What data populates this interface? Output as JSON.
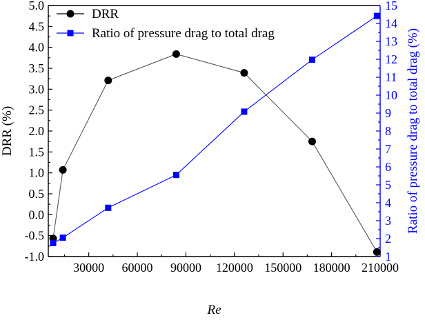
{
  "chart_data": {
    "type": "line",
    "xlabel": "Re",
    "ylabel": "DRR (%)",
    "y2label": "Ratio of pressure drag to total drag (%)",
    "xlim": [
      5000,
      210000
    ],
    "ylim": [
      -1.0,
      5.0
    ],
    "y2lim": [
      1,
      15
    ],
    "x_ticks": [
      30000,
      60000,
      90000,
      120000,
      150000,
      180000,
      210000
    ],
    "y_ticks": [
      "-1.0",
      "-0.5",
      "0.0",
      "0.5",
      "1.0",
      "1.5",
      "2.0",
      "2.5",
      "3.0",
      "3.5",
      "4.0",
      "4.5",
      "5.0"
    ],
    "y2_ticks": [
      "1",
      "2",
      "3",
      "4",
      "5",
      "6",
      "7",
      "8",
      "9",
      "10",
      "11",
      "12",
      "13",
      "14",
      "15"
    ],
    "series": [
      {
        "name": "DRR",
        "axis": "left",
        "marker": "circle",
        "color": "#000000",
        "line_color": "#555555",
        "x": [
          8000,
          14000,
          42000,
          84000,
          126000,
          168000,
          208000
        ],
        "y": [
          -0.57,
          1.07,
          3.21,
          3.84,
          3.39,
          1.75,
          -0.89
        ]
      },
      {
        "name": "Ratio of pressure drag to total drag",
        "axis": "right",
        "marker": "square",
        "color": "#0000ff",
        "line_color": "#0000ff",
        "x": [
          8000,
          14000,
          42000,
          84000,
          126000,
          168000,
          208000
        ],
        "y": [
          1.75,
          2.05,
          3.72,
          5.55,
          9.08,
          11.98,
          14.42
        ]
      }
    ],
    "legend_position": "top-left"
  }
}
